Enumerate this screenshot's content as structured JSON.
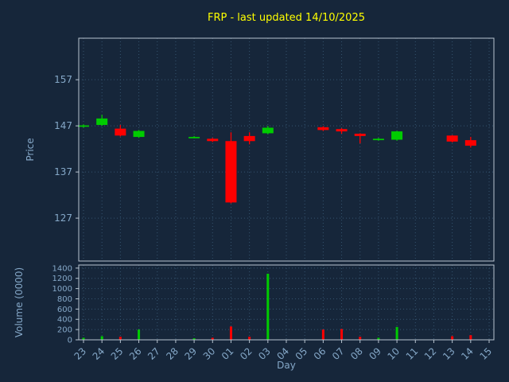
{
  "colors": {
    "background": "#16263a",
    "title": "#ffff00",
    "tick": "#85a8c8",
    "grid": "#35546f",
    "spine": "#b8c4d0",
    "up": "#00cc00",
    "down": "#ff0000"
  },
  "chart_data": {
    "type": "candlestick_with_volume",
    "title": "FRP - last updated 14/10/2025",
    "xlabel": "Day",
    "price_ylabel": "Price",
    "volume_ylabel": "Volume (0000)",
    "price_ticks": [
      157,
      147,
      137,
      127
    ],
    "price_ylim": [
      117.7,
      166.0
    ],
    "volume_ticks": [
      1400,
      1200,
      1000,
      800,
      600,
      400,
      200,
      0
    ],
    "volume_ylim": [
      0,
      1460
    ],
    "grid": "dotted",
    "x_ticks": [
      "23",
      "24",
      "25",
      "26",
      "27",
      "28",
      "29",
      "30",
      "01",
      "02",
      "03",
      "04",
      "05",
      "06",
      "07",
      "08",
      "09",
      "10",
      "11",
      "12",
      "13",
      "14",
      "15"
    ],
    "series": [
      {
        "day": "23",
        "open": 146.9,
        "high": 147.3,
        "low": 146.6,
        "close": 147.1,
        "volume": 40
      },
      {
        "day": "24",
        "open": 147.2,
        "high": 149.4,
        "low": 147.0,
        "close": 148.6,
        "volume": 70
      },
      {
        "day": "25",
        "open": 146.4,
        "high": 147.2,
        "low": 144.7,
        "close": 144.9,
        "volume": 60
      },
      {
        "day": "26",
        "open": 144.6,
        "high": 146.1,
        "low": 144.4,
        "close": 145.9,
        "volume": 200
      },
      {
        "day": "27",
        "open": null,
        "high": null,
        "low": null,
        "close": null,
        "volume": null
      },
      {
        "day": "28",
        "open": null,
        "high": null,
        "low": null,
        "close": null,
        "volume": null
      },
      {
        "day": "29",
        "open": 144.5,
        "high": 144.8,
        "low": 144.3,
        "close": 144.6,
        "volume": 30
      },
      {
        "day": "30",
        "open": 144.2,
        "high": 144.4,
        "low": 143.5,
        "close": 143.7,
        "volume": 40
      },
      {
        "day": "01",
        "open": 143.7,
        "high": 145.6,
        "low": 130.2,
        "close": 130.4,
        "volume": 260
      },
      {
        "day": "02",
        "open": 144.8,
        "high": 145.6,
        "low": 143.0,
        "close": 143.7,
        "volume": 60
      },
      {
        "day": "03",
        "open": 145.4,
        "high": 147.0,
        "low": 145.2,
        "close": 146.6,
        "volume": 1290
      },
      {
        "day": "04",
        "open": null,
        "high": null,
        "low": null,
        "close": null,
        "volume": null
      },
      {
        "day": "05",
        "open": null,
        "high": null,
        "low": null,
        "close": null,
        "volume": null
      },
      {
        "day": "06",
        "open": 146.7,
        "high": 146.9,
        "low": 145.9,
        "close": 146.1,
        "volume": 200
      },
      {
        "day": "07",
        "open": 146.3,
        "high": 146.5,
        "low": 145.3,
        "close": 145.8,
        "volume": 210
      },
      {
        "day": "08",
        "open": 145.3,
        "high": 145.4,
        "low": 143.2,
        "close": 144.8,
        "volume": 60
      },
      {
        "day": "09",
        "open": 144.1,
        "high": 144.4,
        "low": 143.8,
        "close": 144.2,
        "volume": 40
      },
      {
        "day": "10",
        "open": 144.0,
        "high": 145.9,
        "low": 143.8,
        "close": 145.8,
        "volume": 250
      },
      {
        "day": "11",
        "open": null,
        "high": null,
        "low": null,
        "close": null,
        "volume": null
      },
      {
        "day": "12",
        "open": null,
        "high": null,
        "low": null,
        "close": null,
        "volume": null
      },
      {
        "day": "13",
        "open": 144.9,
        "high": 145.0,
        "low": 143.4,
        "close": 143.6,
        "volume": 70
      },
      {
        "day": "14",
        "open": 143.9,
        "high": 144.6,
        "low": 142.3,
        "close": 142.7,
        "volume": 90
      },
      {
        "day": "15",
        "open": null,
        "high": null,
        "low": null,
        "close": null,
        "volume": null
      }
    ]
  }
}
